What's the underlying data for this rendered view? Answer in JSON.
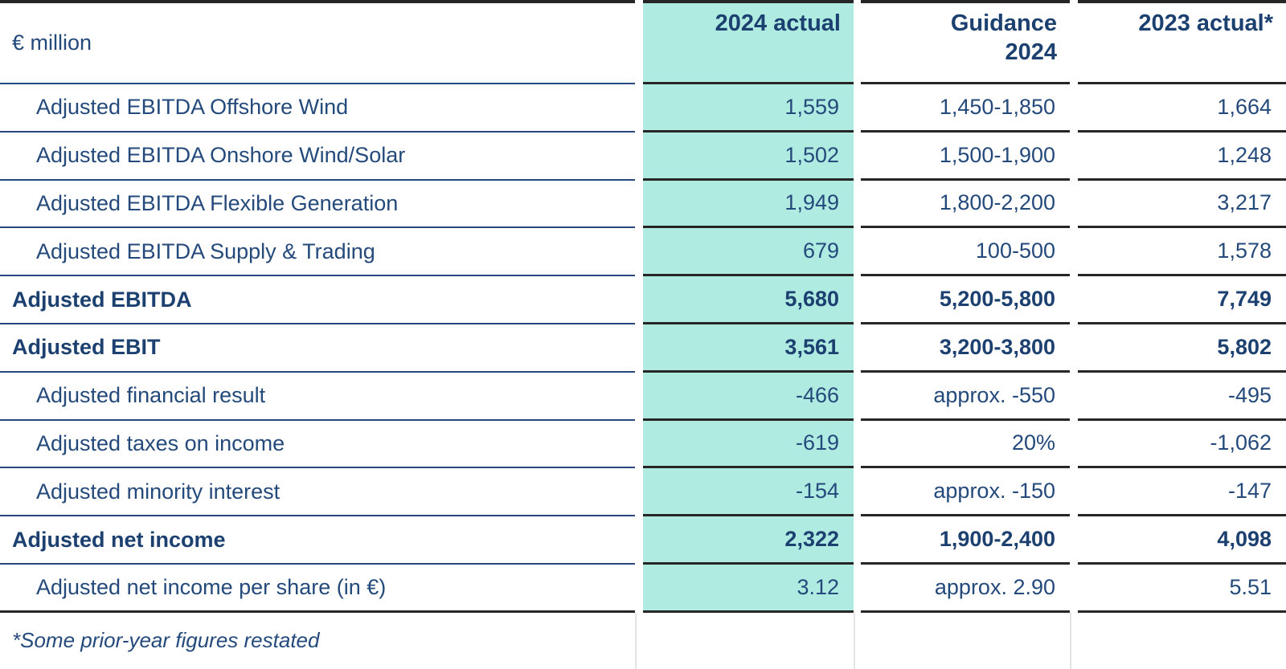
{
  "table": {
    "unit_label": "€ million",
    "columns": [
      {
        "label": "2024 actual",
        "highlight": true
      },
      {
        "label": "Guidance\n2024",
        "highlight": false
      },
      {
        "label": "2023 actual*",
        "highlight": false
      }
    ],
    "rows": [
      {
        "label": "Adjusted EBITDA Offshore Wind",
        "bold": false,
        "actual2024": "1,559",
        "guidance": "1,450-1,850",
        "actual2023": "1,664"
      },
      {
        "label": "Adjusted EBITDA Onshore Wind/Solar",
        "bold": false,
        "actual2024": "1,502",
        "guidance": "1,500-1,900",
        "actual2023": "1,248"
      },
      {
        "label": "Adjusted EBITDA Flexible Generation",
        "bold": false,
        "actual2024": "1,949",
        "guidance": "1,800-2,200",
        "actual2023": "3,217"
      },
      {
        "label": "Adjusted EBITDA Supply & Trading",
        "bold": false,
        "actual2024": "679",
        "guidance": "100-500",
        "actual2023": "1,578"
      },
      {
        "label": "Adjusted EBITDA",
        "bold": true,
        "actual2024": "5,680",
        "guidance": "5,200-5,800",
        "actual2023": "7,749"
      },
      {
        "label": "Adjusted EBIT",
        "bold": true,
        "actual2024": "3,561",
        "guidance": "3,200-3,800",
        "actual2023": "5,802"
      },
      {
        "label": "Adjusted financial result",
        "bold": false,
        "actual2024": "-466",
        "guidance": "approx. -550",
        "actual2023": "-495"
      },
      {
        "label": "Adjusted taxes on income",
        "bold": false,
        "actual2024": "-619",
        "guidance": "20%",
        "actual2023": "-1,062"
      },
      {
        "label": "Adjusted minority interest",
        "bold": false,
        "actual2024": "-154",
        "guidance": "approx. -150",
        "actual2023": "-147"
      },
      {
        "label": "Adjusted net income",
        "bold": true,
        "actual2024": "2,322",
        "guidance": "1,900-2,400",
        "actual2023": "4,098"
      },
      {
        "label": "Adjusted net income per share (in €)",
        "bold": false,
        "actual2024": "3.12",
        "guidance": "approx. 2.90",
        "actual2023": "5.51"
      }
    ],
    "footnote": "*Some prior-year figures restated"
  },
  "colors": {
    "highlight_bg": "#B0EBE2",
    "navy_text": "#24497B",
    "navy_bold": "#1C406F",
    "navy_line": "#27477E",
    "dark_line": "#262626",
    "faint_line": "#E3E3E3"
  }
}
